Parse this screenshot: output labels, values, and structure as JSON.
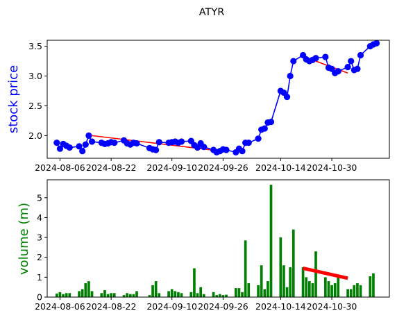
{
  "chart_data": [
    {
      "type": "line",
      "title": "ATYR",
      "ylabel": "stock price",
      "ylabel_color": "#0000ff",
      "line_color": "#0000ff",
      "trend_color": "#ff0000",
      "xlim": [
        "2024-08-02",
        "2024-11-17"
      ],
      "ylim": [
        1.62,
        3.6
      ],
      "yticks": [
        2.0,
        2.5,
        3.0,
        3.5
      ],
      "ytick_labels": [
        "2.0",
        "2.5",
        "3.0",
        "3.5"
      ],
      "xticks": [
        "2024-08-06",
        "2024-08-22",
        "2024-09-10",
        "2024-09-26",
        "2024-10-14",
        "2024-10-30"
      ],
      "series": [
        {
          "x": [
            "2024-08-05",
            "2024-08-06",
            "2024-08-07",
            "2024-08-08",
            "2024-08-09",
            "2024-08-12",
            "2024-08-13",
            "2024-08-14",
            "2024-08-15",
            "2024-08-16",
            "2024-08-19",
            "2024-08-20",
            "2024-08-21",
            "2024-08-22",
            "2024-08-23",
            "2024-08-26",
            "2024-08-27",
            "2024-08-28",
            "2024-08-29",
            "2024-08-30",
            "2024-09-03",
            "2024-09-04",
            "2024-09-05",
            "2024-09-06",
            "2024-09-09",
            "2024-09-10",
            "2024-09-11",
            "2024-09-12",
            "2024-09-13",
            "2024-09-16",
            "2024-09-17",
            "2024-09-18",
            "2024-09-19",
            "2024-09-20",
            "2024-09-23",
            "2024-09-24",
            "2024-09-25",
            "2024-09-26",
            "2024-09-27",
            "2024-09-30",
            "2024-10-01",
            "2024-10-02",
            "2024-10-03",
            "2024-10-04",
            "2024-10-07",
            "2024-10-08",
            "2024-10-09",
            "2024-10-10",
            "2024-10-11",
            "2024-10-14",
            "2024-10-15",
            "2024-10-16",
            "2024-10-17",
            "2024-10-18",
            "2024-10-21",
            "2024-10-22",
            "2024-10-23",
            "2024-10-24",
            "2024-10-25",
            "2024-10-28",
            "2024-10-29",
            "2024-10-30",
            "2024-10-31",
            "2024-11-01",
            "2024-11-04",
            "2024-11-05",
            "2024-11-06",
            "2024-11-07",
            "2024-11-08",
            "2024-11-11",
            "2024-11-12",
            "2024-11-13"
          ],
          "y": [
            1.88,
            1.78,
            1.86,
            1.83,
            1.8,
            1.82,
            1.74,
            1.85,
            2.0,
            1.9,
            1.88,
            1.86,
            1.87,
            1.89,
            1.88,
            1.92,
            1.87,
            1.85,
            1.88,
            1.87,
            1.79,
            1.77,
            1.76,
            1.89,
            1.88,
            1.89,
            1.9,
            1.88,
            1.9,
            1.91,
            1.84,
            1.8,
            1.87,
            1.81,
            1.76,
            1.72,
            1.74,
            1.77,
            1.76,
            1.72,
            1.78,
            1.74,
            1.88,
            1.88,
            1.95,
            2.1,
            2.12,
            2.22,
            2.23,
            2.75,
            2.72,
            2.65,
            3.0,
            3.25,
            3.35,
            3.28,
            3.25,
            3.27,
            3.3,
            3.32,
            3.14,
            3.12,
            3.05,
            3.08,
            3.15,
            3.25,
            3.1,
            3.12,
            3.35,
            3.5,
            3.53,
            3.55
          ]
        }
      ],
      "trend_lines": [
        {
          "x": [
            "2024-08-16",
            "2024-09-27"
          ],
          "y": [
            2.0,
            1.73
          ]
        },
        {
          "x": [
            "2024-10-21",
            "2024-11-04"
          ],
          "y": [
            3.33,
            3.05
          ]
        }
      ]
    },
    {
      "type": "bar",
      "ylabel": "volume (m)",
      "ylabel_color": "#008000",
      "bar_color": "#008000",
      "trend_color": "#ff0000",
      "xlim": [
        "2024-08-02",
        "2024-11-17"
      ],
      "ylim": [
        0,
        5.9
      ],
      "yticks": [
        0,
        1,
        2,
        3,
        4,
        5
      ],
      "ytick_labels": [
        "0",
        "1",
        "2",
        "3",
        "4",
        "5"
      ],
      "xticks": [
        "2024-08-06",
        "2024-08-22",
        "2024-09-10",
        "2024-09-26",
        "2024-10-14",
        "2024-10-30"
      ],
      "series": [
        {
          "x": [
            "2024-08-05",
            "2024-08-06",
            "2024-08-07",
            "2024-08-08",
            "2024-08-09",
            "2024-08-12",
            "2024-08-13",
            "2024-08-14",
            "2024-08-15",
            "2024-08-16",
            "2024-08-19",
            "2024-08-20",
            "2024-08-21",
            "2024-08-22",
            "2024-08-23",
            "2024-08-26",
            "2024-08-27",
            "2024-08-28",
            "2024-08-29",
            "2024-08-30",
            "2024-09-03",
            "2024-09-04",
            "2024-09-05",
            "2024-09-06",
            "2024-09-09",
            "2024-09-10",
            "2024-09-11",
            "2024-09-12",
            "2024-09-13",
            "2024-09-16",
            "2024-09-17",
            "2024-09-18",
            "2024-09-19",
            "2024-09-20",
            "2024-09-23",
            "2024-09-24",
            "2024-09-25",
            "2024-09-26",
            "2024-09-27",
            "2024-09-30",
            "2024-10-01",
            "2024-10-02",
            "2024-10-03",
            "2024-10-04",
            "2024-10-07",
            "2024-10-08",
            "2024-10-09",
            "2024-10-10",
            "2024-10-11",
            "2024-10-14",
            "2024-10-15",
            "2024-10-16",
            "2024-10-17",
            "2024-10-18",
            "2024-10-21",
            "2024-10-22",
            "2024-10-23",
            "2024-10-24",
            "2024-10-25",
            "2024-10-28",
            "2024-10-29",
            "2024-10-30",
            "2024-10-31",
            "2024-11-01",
            "2024-11-04",
            "2024-11-05",
            "2024-11-06",
            "2024-11-07",
            "2024-11-08",
            "2024-11-11",
            "2024-11-12",
            "2024-11-13"
          ],
          "values": [
            0.18,
            0.25,
            0.15,
            0.2,
            0.2,
            0.3,
            0.4,
            0.7,
            0.8,
            0.3,
            0.2,
            0.35,
            0.15,
            0.2,
            0.2,
            0.1,
            0.2,
            0.15,
            0.15,
            0.3,
            0.1,
            0.6,
            0.8,
            0.2,
            0.3,
            0.4,
            0.3,
            0.25,
            0.2,
            0.25,
            1.45,
            0.2,
            0.5,
            0.15,
            0.25,
            0.1,
            0.15,
            0.1,
            0.12,
            0.45,
            0.45,
            0.25,
            2.85,
            0.7,
            0.6,
            1.6,
            0.4,
            0.8,
            5.65,
            3.0,
            1.6,
            0.5,
            1.5,
            3.4,
            1.5,
            1.0,
            0.8,
            0.7,
            2.3,
            1.0,
            0.8,
            0.6,
            0.7,
            1.1,
            0.4,
            0.4,
            0.6,
            0.7,
            0.6,
            1.05,
            1.2,
            0.0
          ]
        }
      ],
      "trend_lines": [
        {
          "x": [
            "2024-10-21",
            "2024-11-04"
          ],
          "y": [
            1.45,
            0.95
          ]
        }
      ]
    }
  ]
}
